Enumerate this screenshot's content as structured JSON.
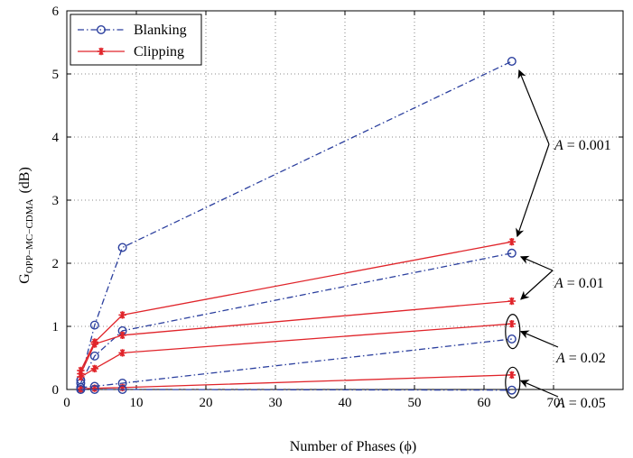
{
  "chart_data": {
    "type": "line",
    "xlabel": "Number of Phases (ϕ)",
    "ylabel_main": "G",
    "ylabel_sub": "OPP−MC−CDMA",
    "ylabel_unit": "(dB)",
    "xlim": [
      0,
      80
    ],
    "ylim": [
      0,
      6
    ],
    "xticks": [
      0,
      10,
      20,
      30,
      40,
      50,
      60,
      70
    ],
    "yticks": [
      0,
      1,
      2,
      3,
      4,
      5,
      6
    ],
    "grid": true,
    "legend_position": "top-left",
    "legend": [
      {
        "label": "Blanking",
        "color": "#2b3f9e",
        "marker": "circle",
        "line": "dash-dot"
      },
      {
        "label": "Clipping",
        "color": "#e0242a",
        "marker": "star",
        "line": "solid"
      }
    ],
    "x": [
      2,
      4,
      8,
      64
    ],
    "series": [
      {
        "group": "Blanking",
        "A": "0.001",
        "values": [
          0.15,
          1.02,
          2.25,
          5.2
        ]
      },
      {
        "group": "Clipping",
        "A": "0.001",
        "values": [
          0.3,
          0.75,
          1.18,
          2.34
        ]
      },
      {
        "group": "Blanking",
        "A": "0.01",
        "values": [
          0.1,
          0.53,
          0.93,
          2.16
        ]
      },
      {
        "group": "Clipping",
        "A": "0.01",
        "values": [
          0.25,
          0.72,
          0.86,
          1.4
        ]
      },
      {
        "group": "Clipping",
        "A": "0.02",
        "values": [
          0.2,
          0.33,
          0.58,
          1.04
        ]
      },
      {
        "group": "Blanking",
        "A": "0.02",
        "values": [
          0.03,
          0.05,
          0.1,
          0.8
        ]
      },
      {
        "group": "Clipping",
        "A": "0.05",
        "values": [
          0.01,
          0.02,
          0.03,
          0.23
        ]
      },
      {
        "group": "Blanking",
        "A": "0.05",
        "values": [
          0.0,
          0.0,
          0.0,
          -0.01
        ]
      }
    ],
    "annotations": [
      {
        "italic": "A",
        "rest": " = 0.001"
      },
      {
        "italic": "A",
        "rest": " = 0.01"
      },
      {
        "italic": "A",
        "rest": " = 0.02"
      },
      {
        "italic": "A",
        "rest": " = 0.05"
      }
    ]
  }
}
